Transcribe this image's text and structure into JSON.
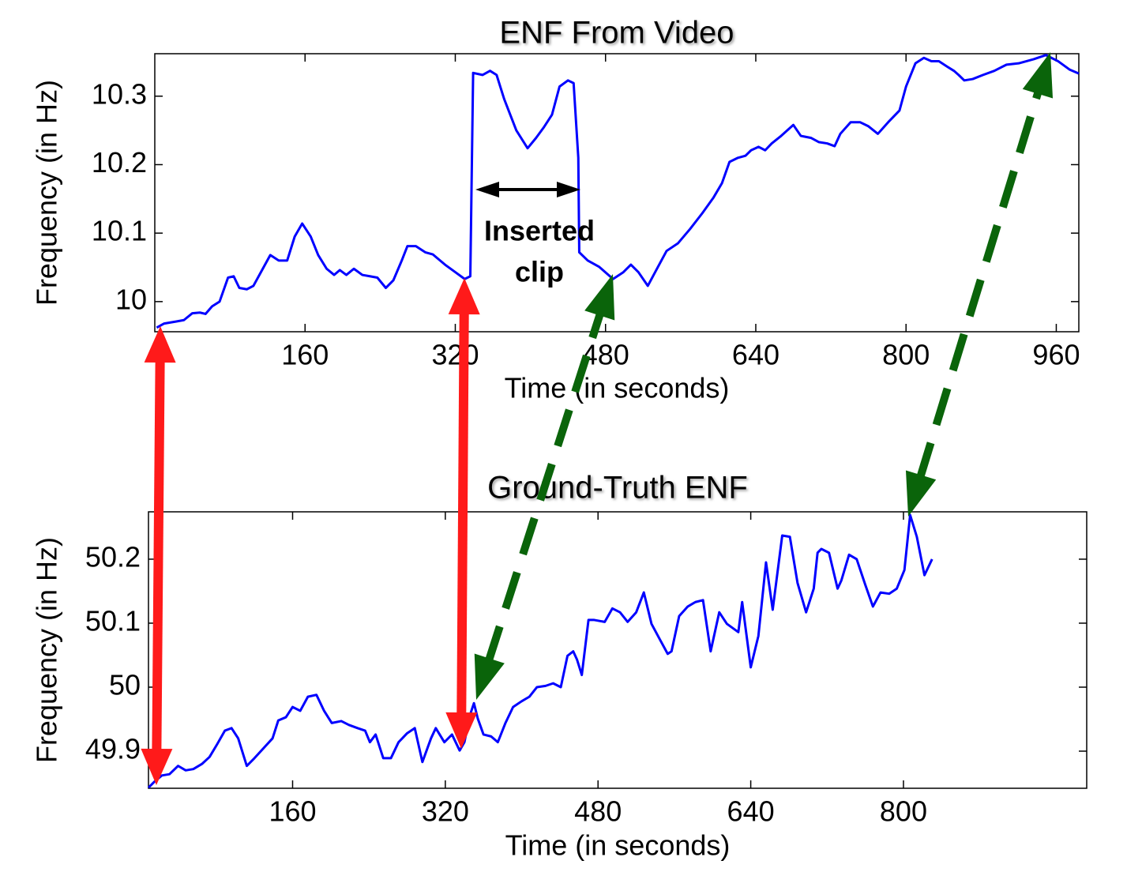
{
  "chart_data": [
    {
      "type": "line",
      "title": "ENF From Video",
      "x_label": "Time (in seconds)",
      "y_label": "Frequency (in Hz)",
      "color": "#0000ff",
      "xlim": [
        0,
        984
      ],
      "xticks": [
        160,
        320,
        480,
        640,
        800,
        960
      ],
      "ylim": [
        9.956,
        10.362
      ],
      "yticks": [
        10,
        10.1,
        10.2,
        10.3
      ],
      "annotations": [
        "Inserted",
        "clip"
      ],
      "x": [
        2,
        10,
        23,
        31,
        40,
        48,
        54,
        61,
        69,
        78,
        84,
        90,
        98,
        105,
        115,
        123,
        132,
        141,
        149,
        157,
        166,
        174,
        183,
        191,
        197,
        204,
        212,
        221,
        229,
        237,
        246,
        254,
        263,
        269,
        278,
        288,
        296,
        309,
        320,
        330,
        336,
        339,
        349,
        357,
        364,
        372,
        385,
        397,
        406,
        414,
        423,
        431,
        440,
        446,
        451,
        452,
        461,
        473,
        488,
        499,
        507,
        515,
        525,
        534,
        545,
        557,
        570,
        583,
        595,
        604,
        612,
        621,
        629,
        635,
        643,
        650,
        657,
        667,
        680,
        688,
        699,
        707,
        716,
        724,
        730,
        741,
        751,
        760,
        770,
        781,
        793,
        800,
        810,
        819,
        827,
        835,
        844,
        851,
        856,
        862,
        871,
        882,
        894,
        907,
        920,
        936,
        949,
        962,
        974,
        984
      ],
      "values": [
        9.962,
        9.968,
        9.971,
        9.973,
        9.983,
        9.984,
        9.982,
        9.993,
        10.0,
        10.035,
        10.037,
        10.02,
        10.018,
        10.023,
        10.048,
        10.068,
        10.06,
        10.06,
        10.095,
        10.114,
        10.095,
        10.068,
        10.048,
        10.039,
        10.046,
        10.039,
        10.048,
        10.039,
        10.037,
        10.035,
        10.02,
        10.031,
        10.06,
        10.081,
        10.081,
        10.072,
        10.069,
        10.054,
        10.043,
        10.033,
        10.037,
        10.334,
        10.331,
        10.337,
        10.331,
        10.296,
        10.25,
        10.224,
        10.239,
        10.254,
        10.273,
        10.314,
        10.323,
        10.319,
        10.21,
        10.072,
        10.06,
        10.051,
        10.033,
        10.043,
        10.054,
        10.043,
        10.023,
        10.046,
        10.074,
        10.085,
        10.106,
        10.129,
        10.152,
        10.173,
        10.204,
        10.21,
        10.213,
        10.221,
        10.226,
        10.221,
        10.231,
        10.242,
        10.258,
        10.242,
        10.239,
        10.233,
        10.231,
        10.227,
        10.245,
        10.262,
        10.262,
        10.256,
        10.245,
        10.262,
        10.279,
        10.314,
        10.348,
        10.356,
        10.351,
        10.351,
        10.343,
        10.337,
        10.331,
        10.323,
        10.325,
        10.331,
        10.337,
        10.346,
        10.348,
        10.354,
        10.36,
        10.351,
        10.339,
        10.333
      ]
    },
    {
      "type": "line",
      "title": "Ground-Truth ENF",
      "x_label": "Time (in seconds)",
      "y_label": "Frequency (in Hz)",
      "color": "#0000ff",
      "xlim": [
        9,
        992
      ],
      "xticks": [
        160,
        320,
        480,
        640,
        800
      ],
      "ylim": [
        49.842,
        50.274
      ],
      "yticks": [
        49.9,
        50,
        50.1,
        50.2
      ],
      "x": [
        9,
        15,
        23,
        31,
        40,
        48,
        56,
        65,
        73,
        81,
        89,
        96,
        103,
        112,
        120,
        131,
        139,
        145,
        153,
        160,
        168,
        176,
        185,
        193,
        201,
        211,
        219,
        228,
        236,
        241,
        247,
        255,
        263,
        271,
        280,
        288,
        296,
        305,
        310,
        319,
        327,
        335,
        340,
        346,
        350,
        354,
        360,
        368,
        375,
        383,
        391,
        400,
        408,
        416,
        425,
        433,
        441,
        448,
        454,
        458,
        463,
        470,
        476,
        487,
        495,
        503,
        511,
        520,
        528,
        536,
        545,
        553,
        557,
        565,
        574,
        582,
        590,
        598,
        607,
        615,
        627,
        631,
        640,
        648,
        656,
        663,
        673,
        681,
        689,
        698,
        706,
        710,
        714,
        722,
        731,
        735,
        743,
        751,
        760,
        768,
        776,
        785,
        793,
        801,
        807,
        814,
        822,
        830
      ],
      "values": [
        49.843,
        49.852,
        49.862,
        49.864,
        49.877,
        49.87,
        49.872,
        49.88,
        49.891,
        49.911,
        49.932,
        49.936,
        49.92,
        49.877,
        49.889,
        49.907,
        49.92,
        49.948,
        49.953,
        49.969,
        49.963,
        49.985,
        49.988,
        49.963,
        49.944,
        49.947,
        49.941,
        49.936,
        49.932,
        49.914,
        49.926,
        49.889,
        49.889,
        49.914,
        49.928,
        49.936,
        49.883,
        49.92,
        49.936,
        49.914,
        49.926,
        49.901,
        49.914,
        49.957,
        49.975,
        49.951,
        49.926,
        49.923,
        49.914,
        49.944,
        49.969,
        49.978,
        49.985,
        50.0,
        50.002,
        50.006,
        50.0,
        50.049,
        50.056,
        50.043,
        50.019,
        50.105,
        50.105,
        50.102,
        50.123,
        50.117,
        50.102,
        50.117,
        50.148,
        50.099,
        50.074,
        50.052,
        50.056,
        50.111,
        50.126,
        50.133,
        50.136,
        50.056,
        50.117,
        50.099,
        50.086,
        50.133,
        50.031,
        50.08,
        50.195,
        50.121,
        50.237,
        50.235,
        50.163,
        50.117,
        50.154,
        50.21,
        50.216,
        50.21,
        50.154,
        50.167,
        50.207,
        50.2,
        50.16,
        50.126,
        50.148,
        50.146,
        50.154,
        50.183,
        50.269,
        50.235,
        50.175,
        50.2
      ]
    }
  ]
}
